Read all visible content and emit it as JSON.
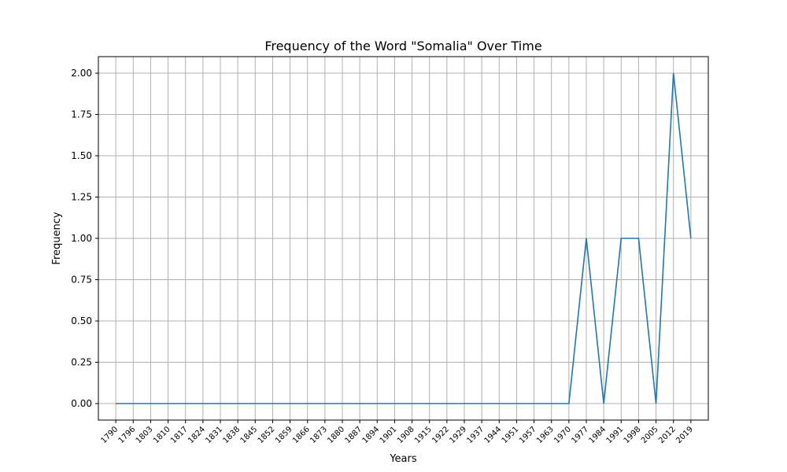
{
  "chart_data": {
    "type": "line",
    "title": "Frequency of the Word \"Somalia\" Over Time",
    "xlabel": "Years",
    "ylabel": "Frequency",
    "ylim": [
      -0.1,
      2.1
    ],
    "xlim": [
      1786.5,
      2022.5
    ],
    "grid": true,
    "x": [
      1790,
      1796,
      1803,
      1810,
      1817,
      1824,
      1831,
      1838,
      1845,
      1852,
      1859,
      1866,
      1873,
      1880,
      1887,
      1894,
      1901,
      1908,
      1915,
      1922,
      1929,
      1937,
      1944,
      1951,
      1957,
      1963,
      1970,
      1977,
      1984,
      1991,
      1998,
      2005,
      2012,
      2019
    ],
    "y_ticks": [
      "0.00",
      "0.25",
      "0.50",
      "0.75",
      "1.00",
      "1.25",
      "1.50",
      "1.75",
      "2.00"
    ],
    "series": [
      {
        "color": "#1f77b4",
        "values": [
          0,
          0,
          0,
          0,
          0,
          0,
          0,
          0,
          0,
          0,
          0,
          0,
          0,
          0,
          0,
          0,
          0,
          0,
          0,
          0,
          0,
          0,
          0,
          0,
          0,
          0,
          0,
          1,
          0,
          1,
          1,
          0,
          2,
          1
        ]
      }
    ]
  }
}
